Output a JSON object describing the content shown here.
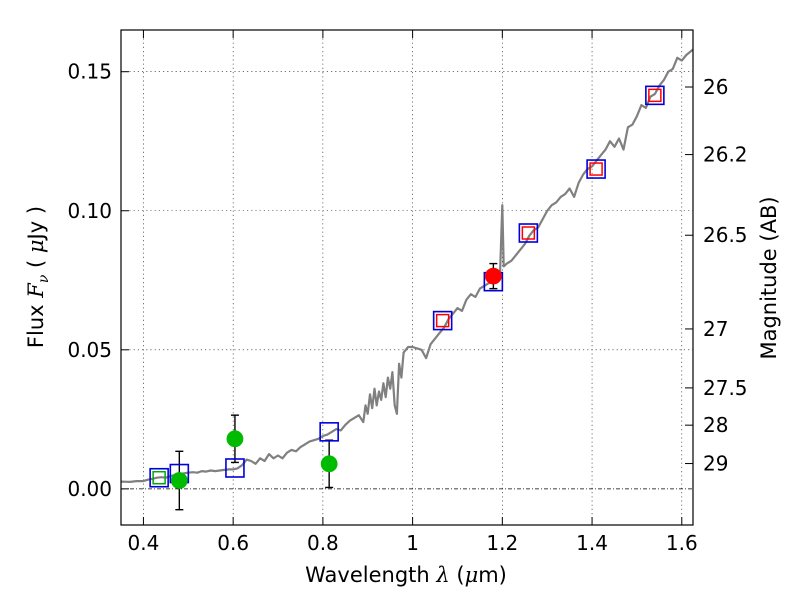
{
  "chart_data": {
    "type": "scatter",
    "xlabel": {
      "pre": "Wavelength  ",
      "sym": "λ",
      "unit": " (",
      "mu": "μ",
      "unit_end": "m)"
    },
    "ylabel": {
      "pre": "Flux  ",
      "sym": "F",
      "sub": "ν",
      "unit_open": "  ( ",
      "mu": "μ",
      "unit_end": "Jy )"
    },
    "y2label": "Magnitude (AB)",
    "xlim": [
      0.35,
      1.625
    ],
    "ylim": [
      -0.013,
      0.165
    ],
    "grid": true,
    "x_ticks": [
      {
        "value": 0.4,
        "label": "0.4"
      },
      {
        "value": 0.6,
        "label": "0.6"
      },
      {
        "value": 0.8,
        "label": "0.8"
      },
      {
        "value": 1.0,
        "label": "1"
      },
      {
        "value": 1.2,
        "label": "1.2"
      },
      {
        "value": 1.4,
        "label": "1.4"
      },
      {
        "value": 1.6,
        "label": "1.6"
      }
    ],
    "y_ticks": [
      {
        "value": 0.0,
        "label": "0.00"
      },
      {
        "value": 0.05,
        "label": "0.05"
      },
      {
        "value": 0.1,
        "label": "0.10"
      },
      {
        "value": 0.15,
        "label": "0.15"
      }
    ],
    "mag_ticks": [
      {
        "value": 0.1445,
        "label": "26"
      },
      {
        "value": 0.1202,
        "label": "26.2"
      },
      {
        "value": 0.0912,
        "label": "26.5"
      },
      {
        "value": 0.0575,
        "label": "27"
      },
      {
        "value": 0.0363,
        "label": "27.5"
      },
      {
        "value": 0.0229,
        "label": "28"
      },
      {
        "value": 0.0091,
        "label": "29"
      }
    ],
    "series": [
      {
        "name": "model spectrum",
        "kind": "line",
        "color": "#808080",
        "points": [
          [
            0.35,
            0.0026
          ],
          [
            0.37,
            0.0025
          ],
          [
            0.385,
            0.0028
          ],
          [
            0.4,
            0.0028
          ],
          [
            0.41,
            0.0033
          ],
          [
            0.42,
            0.0036
          ],
          [
            0.43,
            0.004
          ],
          [
            0.44,
            0.0042
          ],
          [
            0.45,
            0.004
          ],
          [
            0.46,
            0.0046
          ],
          [
            0.47,
            0.005
          ],
          [
            0.48,
            0.0052
          ],
          [
            0.49,
            0.0056
          ],
          [
            0.5,
            0.0058
          ],
          [
            0.51,
            0.006
          ],
          [
            0.52,
            0.0058
          ],
          [
            0.53,
            0.0064
          ],
          [
            0.54,
            0.0062
          ],
          [
            0.55,
            0.0066
          ],
          [
            0.56,
            0.0064
          ],
          [
            0.57,
            0.0066
          ],
          [
            0.58,
            0.0068
          ],
          [
            0.59,
            0.007
          ],
          [
            0.6,
            0.007
          ],
          [
            0.61,
            0.0074
          ],
          [
            0.62,
            0.0085
          ],
          [
            0.63,
            0.0105
          ],
          [
            0.64,
            0.01
          ],
          [
            0.65,
            0.009
          ],
          [
            0.66,
            0.011
          ],
          [
            0.67,
            0.01
          ],
          [
            0.68,
            0.0125
          ],
          [
            0.69,
            0.011
          ],
          [
            0.7,
            0.012
          ],
          [
            0.71,
            0.011
          ],
          [
            0.72,
            0.013
          ],
          [
            0.73,
            0.014
          ],
          [
            0.74,
            0.0135
          ],
          [
            0.75,
            0.015
          ],
          [
            0.76,
            0.016
          ],
          [
            0.77,
            0.017
          ],
          [
            0.78,
            0.0175
          ],
          [
            0.79,
            0.018
          ],
          [
            0.8,
            0.019
          ],
          [
            0.81,
            0.0195
          ],
          [
            0.82,
            0.0205
          ],
          [
            0.83,
            0.0215
          ],
          [
            0.84,
            0.021
          ],
          [
            0.85,
            0.023
          ],
          [
            0.86,
            0.0245
          ],
          [
            0.87,
            0.0255
          ],
          [
            0.88,
            0.0265
          ],
          [
            0.89,
            0.024
          ],
          [
            0.895,
            0.03
          ],
          [
            0.9,
            0.027
          ],
          [
            0.905,
            0.034
          ],
          [
            0.91,
            0.029
          ],
          [
            0.915,
            0.036
          ],
          [
            0.92,
            0.03
          ],
          [
            0.925,
            0.035
          ],
          [
            0.93,
            0.032
          ],
          [
            0.935,
            0.038
          ],
          [
            0.94,
            0.033
          ],
          [
            0.945,
            0.04
          ],
          [
            0.95,
            0.036
          ],
          [
            0.955,
            0.042
          ],
          [
            0.96,
            0.03
          ],
          [
            0.965,
            0.027
          ],
          [
            0.97,
            0.045
          ],
          [
            0.975,
            0.04
          ],
          [
            0.98,
            0.049
          ],
          [
            0.99,
            0.051
          ],
          [
            1.0,
            0.051
          ],
          [
            1.01,
            0.0505
          ],
          [
            1.02,
            0.05
          ],
          [
            1.03,
            0.047
          ],
          [
            1.04,
            0.052
          ],
          [
            1.05,
            0.054
          ],
          [
            1.06,
            0.056
          ],
          [
            1.07,
            0.058
          ],
          [
            1.08,
            0.061
          ],
          [
            1.09,
            0.063
          ],
          [
            1.1,
            0.065
          ],
          [
            1.11,
            0.064
          ],
          [
            1.12,
            0.068
          ],
          [
            1.13,
            0.07
          ],
          [
            1.14,
            0.069
          ],
          [
            1.15,
            0.072
          ],
          [
            1.16,
            0.073
          ],
          [
            1.17,
            0.074
          ],
          [
            1.18,
            0.0745
          ],
          [
            1.19,
            0.076
          ],
          [
            1.195,
            0.078
          ],
          [
            1.2,
            0.102
          ],
          [
            1.203,
            0.08
          ],
          [
            1.21,
            0.081
          ],
          [
            1.22,
            0.082
          ],
          [
            1.23,
            0.084
          ],
          [
            1.24,
            0.086
          ],
          [
            1.25,
            0.088
          ],
          [
            1.26,
            0.091
          ],
          [
            1.27,
            0.093
          ],
          [
            1.28,
            0.094
          ],
          [
            1.29,
            0.097
          ],
          [
            1.3,
            0.1
          ],
          [
            1.31,
            0.102
          ],
          [
            1.32,
            0.103
          ],
          [
            1.33,
            0.105
          ],
          [
            1.34,
            0.106
          ],
          [
            1.35,
            0.108
          ],
          [
            1.36,
            0.105
          ],
          [
            1.37,
            0.11
          ],
          [
            1.38,
            0.113
          ],
          [
            1.39,
            0.115
          ],
          [
            1.4,
            0.116
          ],
          [
            1.41,
            0.118
          ],
          [
            1.42,
            0.12
          ],
          [
            1.43,
            0.122
          ],
          [
            1.44,
            0.125
          ],
          [
            1.45,
            0.123
          ],
          [
            1.46,
            0.126
          ],
          [
            1.47,
            0.122
          ],
          [
            1.48,
            0.13
          ],
          [
            1.49,
            0.131
          ],
          [
            1.5,
            0.134
          ],
          [
            1.51,
            0.138
          ],
          [
            1.52,
            0.137
          ],
          [
            1.53,
            0.141
          ],
          [
            1.54,
            0.142
          ],
          [
            1.55,
            0.145
          ],
          [
            1.56,
            0.147
          ],
          [
            1.57,
            0.15
          ],
          [
            1.58,
            0.151
          ],
          [
            1.59,
            0.155
          ],
          [
            1.6,
            0.154
          ],
          [
            1.61,
            0.156
          ],
          [
            1.625,
            0.158
          ]
        ]
      },
      {
        "name": "observed (blue squares)",
        "kind": "square",
        "color": "#0000dd",
        "points": [
          {
            "x": 0.435,
            "y": 0.004
          },
          {
            "x": 0.48,
            "y": 0.0055
          },
          {
            "x": 0.604,
            "y": 0.0075
          },
          {
            "x": 0.814,
            "y": 0.0205
          },
          {
            "x": 1.067,
            "y": 0.0605
          },
          {
            "x": 1.18,
            "y": 0.0745
          },
          {
            "x": 1.258,
            "y": 0.092
          },
          {
            "x": 1.409,
            "y": 0.115
          },
          {
            "x": 1.54,
            "y": 0.1415
          }
        ]
      },
      {
        "name": "synthetic (red squares)",
        "kind": "square-small",
        "color": "#ff0000",
        "points": [
          {
            "x": 1.067,
            "y": 0.0605
          },
          {
            "x": 1.258,
            "y": 0.092
          },
          {
            "x": 1.409,
            "y": 0.115
          },
          {
            "x": 1.54,
            "y": 0.1415
          }
        ]
      },
      {
        "name": "green squares",
        "kind": "square-small",
        "color": "#00aa00",
        "points": [
          {
            "x": 0.435,
            "y": 0.004
          }
        ]
      },
      {
        "name": "green photometry",
        "kind": "circle",
        "color": "#00bb00",
        "points": [
          {
            "x": 0.48,
            "y": 0.003,
            "err": 0.0105
          },
          {
            "x": 0.604,
            "y": 0.018,
            "err": 0.0085
          },
          {
            "x": 0.814,
            "y": 0.009,
            "err": 0.0085
          }
        ]
      },
      {
        "name": "red photometry",
        "kind": "circle",
        "color": "#ff0000",
        "points": [
          {
            "x": 1.18,
            "y": 0.0765,
            "err": 0.0045
          }
        ]
      }
    ]
  }
}
